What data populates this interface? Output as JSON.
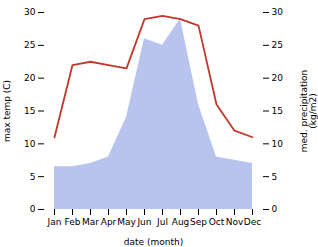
{
  "chart_data": {
    "type": "line",
    "categories": [
      "Jan",
      "Feb",
      "Mar",
      "Apr",
      "May",
      "Jun",
      "Jul",
      "Aug",
      "Sep",
      "Oct",
      "Nov",
      "Dec"
    ],
    "series": [
      {
        "type": "line",
        "color": "#c0392b",
        "values": [
          11,
          22,
          22.5,
          22,
          21.5,
          29,
          29.5,
          29,
          28,
          16,
          12,
          11
        ]
      },
      {
        "type": "area",
        "color": "#b8c4ed",
        "axis": "y2",
        "values": [
          6.5,
          6.5,
          7,
          8,
          14,
          26,
          25,
          29,
          16,
          8,
          7.5,
          7
        ]
      }
    ],
    "xlabel": "date (month)",
    "ylabel": "max temp (C)",
    "y2label": "med. precipitation\n(kg/m2)",
    "ylim": [
      0,
      30
    ],
    "yticks": [
      0,
      5,
      10,
      15,
      20,
      25,
      30
    ],
    "y2lim": [
      0,
      30
    ],
    "y2ticks": [
      0,
      5,
      10,
      15,
      20,
      25,
      30
    ],
    "grid": false
  }
}
